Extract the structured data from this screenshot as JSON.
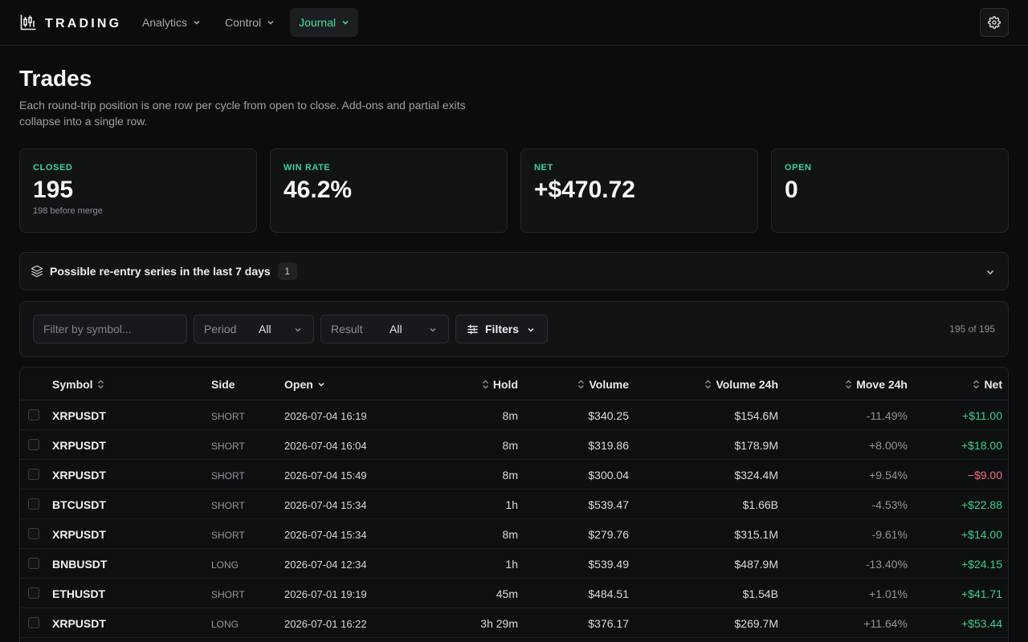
{
  "brand": {
    "name": "TRADING"
  },
  "nav": [
    {
      "label": "Analytics",
      "active": false
    },
    {
      "label": "Control",
      "active": false
    },
    {
      "label": "Journal",
      "active": true
    }
  ],
  "header": {
    "title": "Trades",
    "description": "Each round-trip position is one row per cycle from open to close. Add-ons and partial exits collapse into a single row."
  },
  "stats": [
    {
      "label": "CLOSED",
      "value": "195",
      "sub": "198 before merge"
    },
    {
      "label": "WIN RATE",
      "value": "46.2%",
      "sub": ""
    },
    {
      "label": "NET",
      "value": "+$470.72",
      "sub": ""
    },
    {
      "label": "OPEN",
      "value": "0",
      "sub": ""
    }
  ],
  "reentry": {
    "label": "Possible re-entry series in the last 7 days",
    "count": "1"
  },
  "filters": {
    "search_placeholder": "Filter by symbol...",
    "period_label": "Period",
    "period_value": "All",
    "result_label": "Result",
    "result_value": "All",
    "filters_label": "Filters",
    "count_text": "195 of 195"
  },
  "table": {
    "columns": {
      "symbol": "Symbol",
      "side": "Side",
      "open": "Open",
      "hold": "Hold",
      "volume": "Volume",
      "volume24h": "Volume 24h",
      "move24h": "Move 24h",
      "net": "Net"
    },
    "rows": [
      {
        "symbol": "XRPUSDT",
        "side": "SHORT",
        "open": "2026-07-04 16:19",
        "hold": "8m",
        "volume": "$340.25",
        "volume24h": "$154.6M",
        "move24h": "-11.49%",
        "net": "+$11.00",
        "positive": true
      },
      {
        "symbol": "XRPUSDT",
        "side": "SHORT",
        "open": "2026-07-04 16:04",
        "hold": "8m",
        "volume": "$319.86",
        "volume24h": "$178.9M",
        "move24h": "+8.00%",
        "net": "+$18.00",
        "positive": true
      },
      {
        "symbol": "XRPUSDT",
        "side": "SHORT",
        "open": "2026-07-04 15:49",
        "hold": "8m",
        "volume": "$300.04",
        "volume24h": "$324.4M",
        "move24h": "+9.54%",
        "net": "−$9.00",
        "positive": false
      },
      {
        "symbol": "BTCUSDT",
        "side": "SHORT",
        "open": "2026-07-04 15:34",
        "hold": "1h",
        "volume": "$539.47",
        "volume24h": "$1.66B",
        "move24h": "-4.53%",
        "net": "+$22.88",
        "positive": true
      },
      {
        "symbol": "XRPUSDT",
        "side": "SHORT",
        "open": "2026-07-04 15:34",
        "hold": "8m",
        "volume": "$279.76",
        "volume24h": "$315.1M",
        "move24h": "-9.61%",
        "net": "+$14.00",
        "positive": true
      },
      {
        "symbol": "BNBUSDT",
        "side": "LONG",
        "open": "2026-07-04 12:34",
        "hold": "1h",
        "volume": "$539.49",
        "volume24h": "$487.9M",
        "move24h": "-13.40%",
        "net": "+$24.15",
        "positive": true
      },
      {
        "symbol": "ETHUSDT",
        "side": "SHORT",
        "open": "2026-07-01 19:19",
        "hold": "45m",
        "volume": "$484.51",
        "volume24h": "$1.54B",
        "move24h": "+1.01%",
        "net": "+$41.71",
        "positive": true
      },
      {
        "symbol": "XRPUSDT",
        "side": "LONG",
        "open": "2026-07-01 16:22",
        "hold": "3h 29m",
        "volume": "$376.17",
        "volume24h": "$269.7M",
        "move24h": "+11.64%",
        "net": "+$53.44",
        "positive": true
      }
    ]
  }
}
